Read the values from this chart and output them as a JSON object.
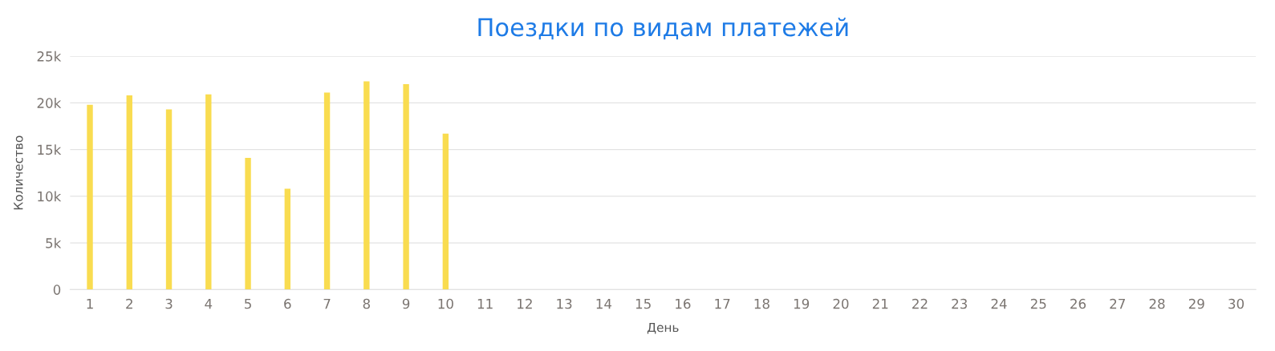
{
  "chart_data": {
    "type": "bar",
    "title": "Поездки по видам платежей",
    "xlabel": "День",
    "ylabel": "Количество",
    "categories": [
      "1",
      "2",
      "3",
      "4",
      "5",
      "6",
      "7",
      "8",
      "9",
      "10",
      "11",
      "12",
      "13",
      "14",
      "15",
      "16",
      "17",
      "18",
      "19",
      "20",
      "21",
      "22",
      "23",
      "24",
      "25",
      "26",
      "27",
      "28",
      "29",
      "30"
    ],
    "series": [
      {
        "color": "#f9dc50",
        "values": [
          19800,
          20800,
          19300,
          20900,
          14100,
          10800,
          21100,
          22300,
          22000,
          16700,
          null,
          null,
          null,
          null,
          null,
          null,
          null,
          null,
          null,
          null,
          null,
          null,
          null,
          null,
          null,
          null,
          null,
          null,
          null,
          null
        ]
      }
    ],
    "ylim": [
      0,
      25000
    ],
    "yticks": [
      0,
      {
        "value": 5000,
        "label": "5k"
      },
      {
        "value": 10000,
        "label": "10k"
      },
      {
        "value": 15000,
        "label": "15k"
      },
      {
        "value": 20000,
        "label": "20k"
      },
      {
        "value": 25000,
        "label": "25k"
      }
    ],
    "grid": "y"
  }
}
